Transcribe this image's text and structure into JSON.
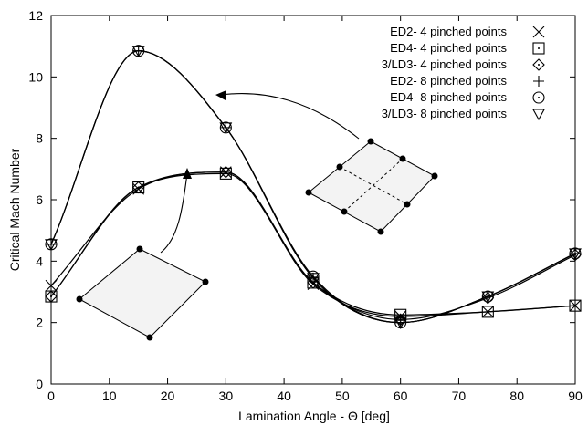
{
  "chart_data": {
    "type": "line",
    "title": "",
    "xlabel": "Lamination Angle - Θ [deg]",
    "ylabel": "Critical Mach Number",
    "xlim": [
      0,
      90
    ],
    "ylim": [
      0,
      12
    ],
    "x_ticks": [
      "0",
      "10",
      "20",
      "30",
      "40",
      "50",
      "60",
      "70",
      "80",
      "90"
    ],
    "y_ticks": [
      "0",
      "2",
      "4",
      "6",
      "8",
      "10",
      "12"
    ],
    "grid": false,
    "legend_position": "top-right",
    "x": [
      0,
      15,
      30,
      45,
      60,
      75,
      90
    ],
    "series": [
      {
        "name": "ED2- 4 pinched points",
        "marker": "x",
        "values": [
          3.2,
          6.35,
          6.9,
          3.25,
          2.2,
          2.35,
          2.55
        ]
      },
      {
        "name": "ED4- 4 pinched points",
        "marker": "square",
        "values": [
          2.85,
          6.4,
          6.85,
          3.3,
          2.25,
          2.35,
          2.55
        ]
      },
      {
        "name": "3/LD3- 4 pinched points",
        "marker": "diamond",
        "values": [
          2.85,
          6.4,
          6.9,
          3.3,
          2.1,
          2.8,
          4.2
        ]
      },
      {
        "name": "ED2- 8 pinched points",
        "marker": "plus",
        "values": [
          4.55,
          10.85,
          8.35,
          3.45,
          2.0,
          2.85,
          4.25
        ]
      },
      {
        "name": "ED4- 8 pinched points",
        "marker": "circle",
        "values": [
          4.55,
          10.85,
          8.35,
          3.5,
          2.0,
          2.85,
          4.25
        ]
      },
      {
        "name": "3/LD3- 8 pinched points",
        "marker": "triangle-down",
        "values": [
          4.55,
          10.85,
          8.35,
          3.45,
          2.0,
          2.85,
          4.25
        ]
      }
    ]
  }
}
